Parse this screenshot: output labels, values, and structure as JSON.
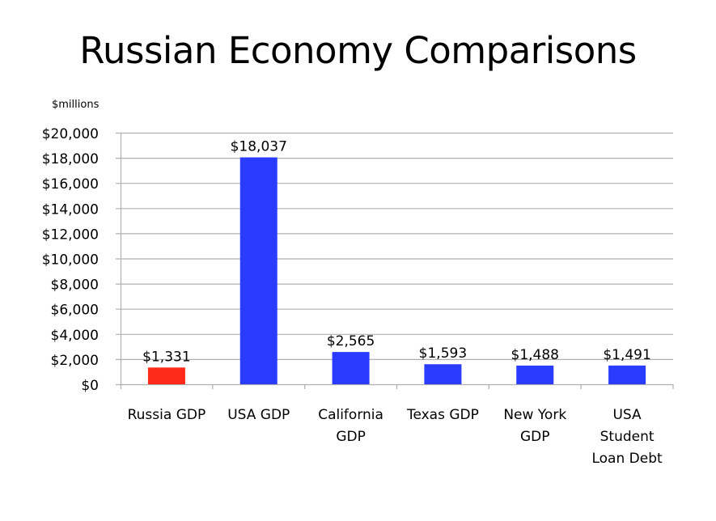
{
  "chart_data": {
    "type": "bar",
    "title": "Russian Economy Comparisons",
    "ylabel": "$millions",
    "xlabel": "",
    "categories": [
      "Russia GDP",
      "USA GDP",
      "California GDP",
      "Texas GDP",
      "New York GDP",
      "USA Student Loan Debt"
    ],
    "category_lines": [
      [
        "Russia GDP"
      ],
      [
        "USA GDP"
      ],
      [
        "California",
        "GDP"
      ],
      [
        "Texas GDP"
      ],
      [
        "New York",
        "GDP"
      ],
      [
        "USA",
        "Student",
        "Loan Debt"
      ]
    ],
    "values": [
      1331,
      18037,
      2565,
      1593,
      1488,
      1491
    ],
    "data_labels": [
      "$1,331",
      "$18,037",
      "$2,565",
      "$1,593",
      "$1,488",
      "$1,491"
    ],
    "ylim": [
      0,
      20000
    ],
    "yticks": [
      0,
      2000,
      4000,
      6000,
      8000,
      10000,
      12000,
      14000,
      16000,
      18000,
      20000
    ],
    "ytick_labels": [
      "$0",
      "$2,000",
      "$4,000",
      "$6,000",
      "$8,000",
      "$10,000",
      "$12,000",
      "$14,000",
      "$16,000",
      "$18,000",
      "$20,000"
    ],
    "grid": true,
    "legend": "none",
    "colors": [
      "#ff2a1a",
      "#2a3cff",
      "#2a3cff",
      "#2a3cff",
      "#2a3cff",
      "#2a3cff"
    ],
    "gridline_color": "#b0b0b0"
  }
}
